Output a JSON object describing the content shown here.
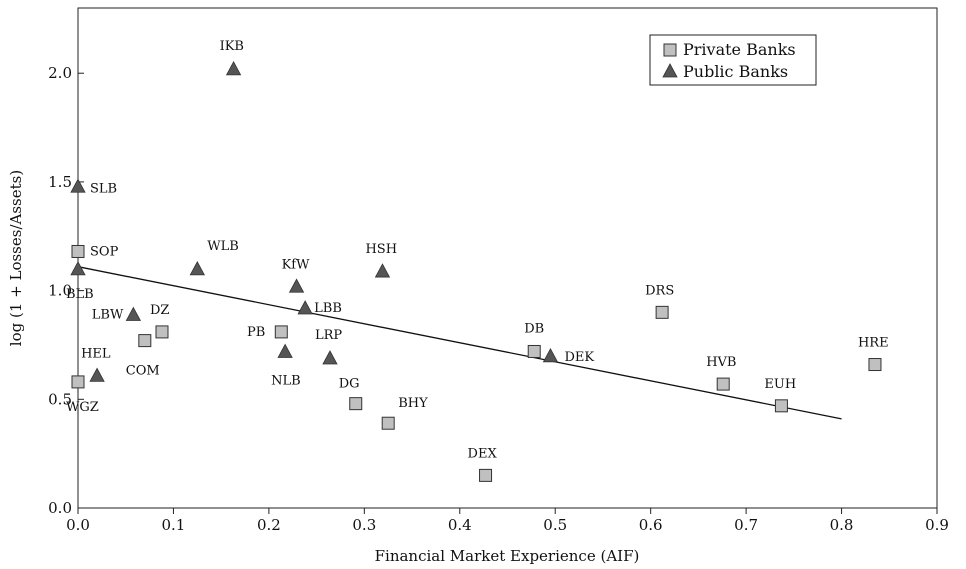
{
  "chart_data": {
    "type": "scatter",
    "xlabel": "Financial Market Experience (AIF)",
    "ylabel": "log (1 + Losses/Assets)",
    "xlim": [
      0.0,
      0.9
    ],
    "ylim": [
      0.0,
      2.3
    ],
    "x_ticks": [
      0.0,
      0.1,
      0.2,
      0.3,
      0.4,
      0.5,
      0.6,
      0.7,
      0.8,
      0.9
    ],
    "x_tick_labels": [
      "0.0",
      "0.1",
      "0.2",
      "0.3",
      "0.4",
      "0.5",
      "0.6",
      "0.7",
      "0.8",
      "0.9"
    ],
    "y_ticks": [
      0.0,
      0.5,
      1.0,
      1.5,
      2.0
    ],
    "y_tick_labels": [
      "0.0",
      "0.5",
      "1.0",
      "1.5",
      "2.0"
    ],
    "grid": false,
    "legend_position": "top-right",
    "series": [
      {
        "name": "Private Banks",
        "marker": "square",
        "color": "#c0c0c0",
        "points": [
          {
            "label": "SOP",
            "x": 0.0,
            "y": 1.18
          },
          {
            "label": "WGZ",
            "x": 0.0,
            "y": 0.58
          },
          {
            "label": "COM",
            "x": 0.07,
            "y": 0.77
          },
          {
            "label": "DZ",
            "x": 0.088,
            "y": 0.81
          },
          {
            "label": "PB",
            "x": 0.213,
            "y": 0.81
          },
          {
            "label": "DG",
            "x": 0.291,
            "y": 0.48
          },
          {
            "label": "BHY",
            "x": 0.325,
            "y": 0.39
          },
          {
            "label": "DEX",
            "x": 0.427,
            "y": 0.15
          },
          {
            "label": "DB",
            "x": 0.478,
            "y": 0.72
          },
          {
            "label": "DRS",
            "x": 0.612,
            "y": 0.9
          },
          {
            "label": "HVB",
            "x": 0.676,
            "y": 0.57
          },
          {
            "label": "EUH",
            "x": 0.737,
            "y": 0.47
          },
          {
            "label": "HRE",
            "x": 0.835,
            "y": 0.66
          }
        ]
      },
      {
        "name": "Public Banks",
        "marker": "triangle",
        "color": "#555555",
        "points": [
          {
            "label": "SLB",
            "x": 0.0,
            "y": 1.48
          },
          {
            "label": "BLB",
            "x": 0.0,
            "y": 1.1
          },
          {
            "label": "HEL",
            "x": 0.02,
            "y": 0.61
          },
          {
            "label": "LBW",
            "x": 0.058,
            "y": 0.89
          },
          {
            "label": "WLB",
            "x": 0.125,
            "y": 1.1
          },
          {
            "label": "IKB",
            "x": 0.163,
            "y": 2.02
          },
          {
            "label": "NLB",
            "x": 0.217,
            "y": 0.72
          },
          {
            "label": "KfW",
            "x": 0.229,
            "y": 1.02
          },
          {
            "label": "LBB",
            "x": 0.238,
            "y": 0.92
          },
          {
            "label": "LRP",
            "x": 0.264,
            "y": 0.69
          },
          {
            "label": "HSH",
            "x": 0.319,
            "y": 1.09
          },
          {
            "label": "DEK",
            "x": 0.495,
            "y": 0.7
          }
        ]
      }
    ],
    "trend_line": {
      "x1": 0.0,
      "y1": 1.11,
      "x2": 0.8,
      "y2": 0.41
    }
  }
}
